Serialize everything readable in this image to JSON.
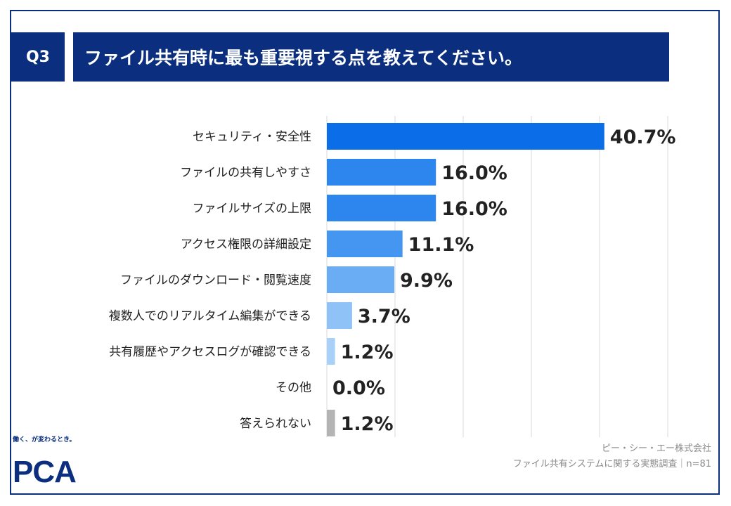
{
  "header": {
    "question_number": "Q3",
    "question_text": "ファイル共有時に最も重要視する点を教えてください。"
  },
  "chart_data": {
    "type": "bar",
    "orientation": "horizontal",
    "categories": [
      "セキュリティ・安全性",
      "ファイルの共有しやすさ",
      "ファイルサイズの上限",
      "アクセス権限の詳細設定",
      "ファイルのダウンロード・閲覧速度",
      "複数人でのリアルタイム編集ができる",
      "共有履歴やアクセスログが確認できる",
      "その他",
      "答えられない"
    ],
    "values": [
      40.7,
      16.0,
      16.0,
      11.1,
      9.9,
      3.7,
      1.2,
      0.0,
      1.2
    ],
    "value_labels": [
      "40.7%",
      "16.0%",
      "16.0%",
      "11.1%",
      "9.9%",
      "3.7%",
      "1.2%",
      "0.0%",
      "1.2%"
    ],
    "colors": [
      "#0b6ee8",
      "#2d86ee",
      "#2d86ee",
      "#4496f0",
      "#6aadf4",
      "#8fc2f7",
      "#a8d0f8",
      "#a8d0f8",
      "#b4b4b4"
    ],
    "xlim": [
      0,
      50
    ],
    "grid": true,
    "legend": "none"
  },
  "brand": {
    "tagline": "働く、が変わるとき。",
    "logo_text": "PCA",
    "color": "#0b2f7e"
  },
  "footer": {
    "company": "ピー・シー・エー株式会社",
    "survey": "ファイル共有システムに関する実態調査｜n=81"
  }
}
